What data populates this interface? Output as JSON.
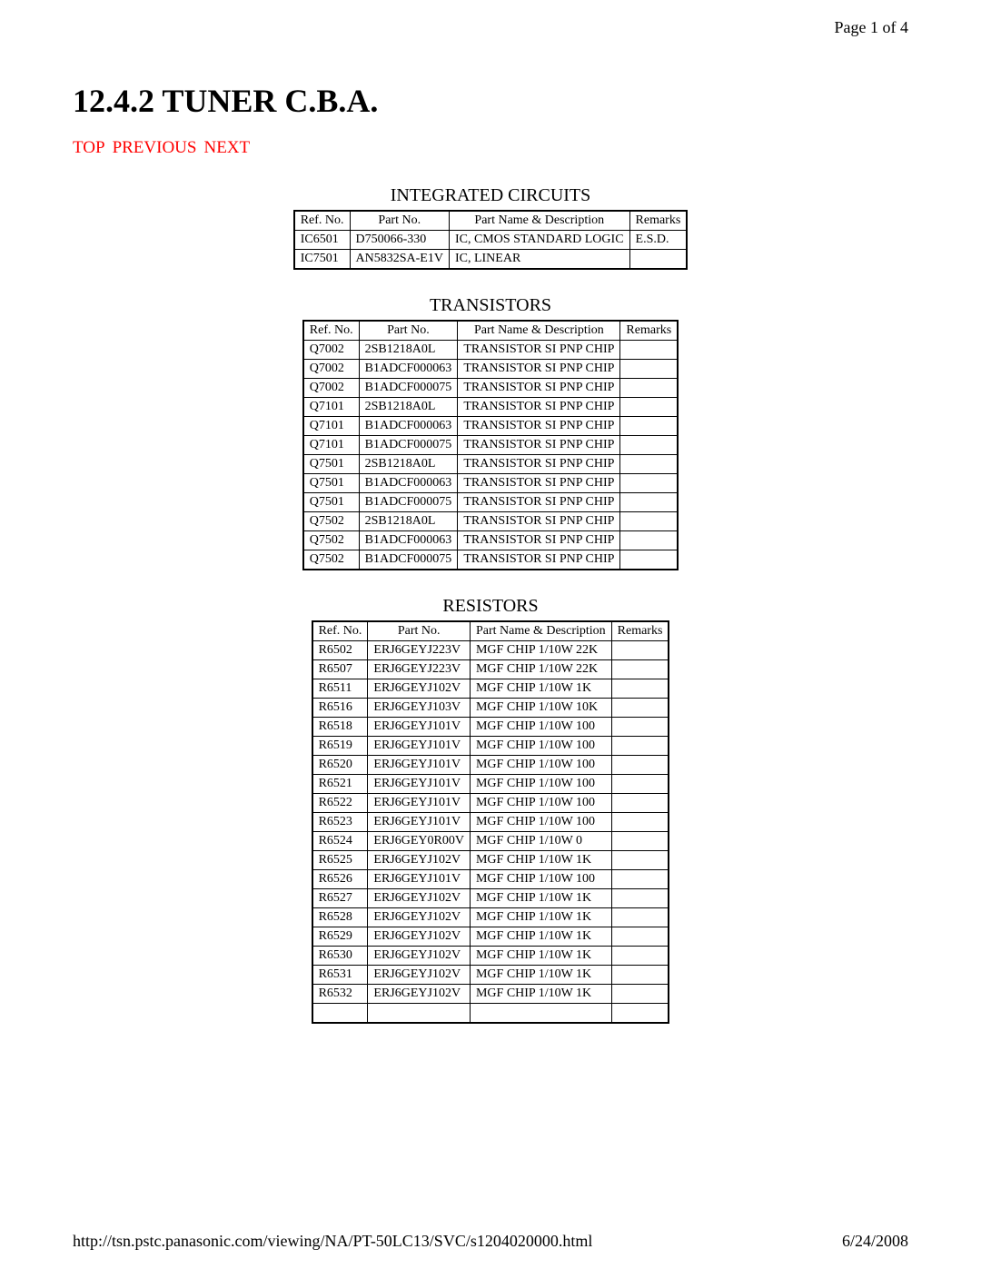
{
  "page_indicator": "Page 1 of 4",
  "title": "12.4.2 TUNER C.B.A.",
  "nav": {
    "top": "TOP",
    "previous": "PREVIOUS",
    "next": "NEXT"
  },
  "link_color": "#ff0000",
  "footer": {
    "url": "http://tsn.pstc.panasonic.com/viewing/NA/PT-50LC13/SVC/s1204020000.html",
    "date": "6/24/2008"
  },
  "tables": [
    {
      "caption": "INTEGRATED CIRCUITS",
      "columns": [
        "Ref. No.",
        "Part No.",
        "Part Name & Description",
        "Remarks"
      ],
      "rows": [
        [
          "IC6501",
          "D750066-330",
          "IC, CMOS STANDARD LOGIC",
          "E.S.D."
        ],
        [
          "IC7501",
          "AN5832SA-E1V",
          "IC, LINEAR",
          ""
        ]
      ]
    },
    {
      "caption": "TRANSISTORS",
      "columns": [
        "Ref. No.",
        "Part No.",
        "Part Name & Description",
        "Remarks"
      ],
      "rows": [
        [
          "Q7002",
          "2SB1218A0L",
          "TRANSISTOR SI PNP CHIP",
          ""
        ],
        [
          "Q7002",
          "B1ADCF000063",
          "TRANSISTOR SI PNP CHIP",
          ""
        ],
        [
          "Q7002",
          "B1ADCF000075",
          "TRANSISTOR SI PNP CHIP",
          ""
        ],
        [
          "Q7101",
          "2SB1218A0L",
          "TRANSISTOR SI PNP CHIP",
          ""
        ],
        [
          "Q7101",
          "B1ADCF000063",
          "TRANSISTOR SI PNP CHIP",
          ""
        ],
        [
          "Q7101",
          "B1ADCF000075",
          "TRANSISTOR SI PNP CHIP",
          ""
        ],
        [
          "Q7501",
          "2SB1218A0L",
          "TRANSISTOR SI PNP CHIP",
          ""
        ],
        [
          "Q7501",
          "B1ADCF000063",
          "TRANSISTOR SI PNP CHIP",
          ""
        ],
        [
          "Q7501",
          "B1ADCF000075",
          "TRANSISTOR SI PNP CHIP",
          ""
        ],
        [
          "Q7502",
          "2SB1218A0L",
          "TRANSISTOR SI PNP CHIP",
          ""
        ],
        [
          "Q7502",
          "B1ADCF000063",
          "TRANSISTOR SI PNP CHIP",
          ""
        ],
        [
          "Q7502",
          "B1ADCF000075",
          "TRANSISTOR SI PNP CHIP",
          ""
        ]
      ]
    },
    {
      "caption": "RESISTORS",
      "columns": [
        "Ref. No.",
        "Part No.",
        "Part Name & Description",
        "Remarks"
      ],
      "rows": [
        [
          "R6502",
          "ERJ6GEYJ223V",
          "MGF CHIP 1/10W 22K",
          ""
        ],
        [
          "R6507",
          "ERJ6GEYJ223V",
          "MGF CHIP 1/10W 22K",
          ""
        ],
        [
          "R6511",
          "ERJ6GEYJ102V",
          "MGF CHIP 1/10W 1K",
          ""
        ],
        [
          "R6516",
          "ERJ6GEYJ103V",
          "MGF CHIP 1/10W 10K",
          ""
        ],
        [
          "R6518",
          "ERJ6GEYJ101V",
          "MGF CHIP 1/10W 100",
          ""
        ],
        [
          "R6519",
          "ERJ6GEYJ101V",
          "MGF CHIP 1/10W 100",
          ""
        ],
        [
          "R6520",
          "ERJ6GEYJ101V",
          "MGF CHIP 1/10W 100",
          ""
        ],
        [
          "R6521",
          "ERJ6GEYJ101V",
          "MGF CHIP 1/10W 100",
          ""
        ],
        [
          "R6522",
          "ERJ6GEYJ101V",
          "MGF CHIP 1/10W 100",
          ""
        ],
        [
          "R6523",
          "ERJ6GEYJ101V",
          "MGF CHIP 1/10W 100",
          ""
        ],
        [
          "R6524",
          "ERJ6GEY0R00V",
          "MGF CHIP 1/10W 0",
          ""
        ],
        [
          "R6525",
          "ERJ6GEYJ102V",
          "MGF CHIP 1/10W 1K",
          ""
        ],
        [
          "R6526",
          "ERJ6GEYJ101V",
          "MGF CHIP 1/10W 100",
          ""
        ],
        [
          "R6527",
          "ERJ6GEYJ102V",
          "MGF CHIP 1/10W 1K",
          ""
        ],
        [
          "R6528",
          "ERJ6GEYJ102V",
          "MGF CHIP 1/10W 1K",
          ""
        ],
        [
          "R6529",
          "ERJ6GEYJ102V",
          "MGF CHIP 1/10W 1K",
          ""
        ],
        [
          "R6530",
          "ERJ6GEYJ102V",
          "MGF CHIP 1/10W 1K",
          ""
        ],
        [
          "R6531",
          "ERJ6GEYJ102V",
          "MGF CHIP 1/10W 1K",
          ""
        ],
        [
          "R6532",
          "ERJ6GEYJ102V",
          "MGF CHIP 1/10W 1K",
          ""
        ],
        [
          "",
          "",
          "",
          ""
        ]
      ]
    }
  ]
}
